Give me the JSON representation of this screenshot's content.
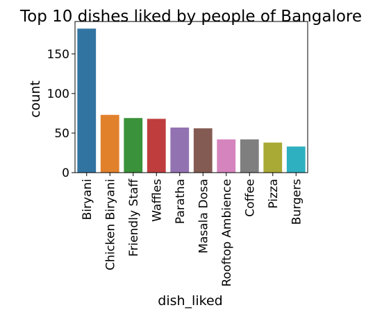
{
  "chart_data": {
    "type": "bar",
    "title": "Top 10 dishes liked by people of Bangalore",
    "xlabel": "dish_liked",
    "ylabel": "count",
    "categories": [
      "Biryani",
      "Chicken Biryani",
      "Friendly Staff",
      "Waffles",
      "Paratha",
      "Masala Dosa",
      "Rooftop Ambience",
      "Coffee",
      "Pizza",
      "Burgers"
    ],
    "values": [
      182,
      73,
      69,
      68,
      57,
      56,
      42,
      42,
      38,
      33
    ],
    "colors": [
      "#3274a1",
      "#e1812c",
      "#3a923a",
      "#c03d3e",
      "#9372b2",
      "#845b53",
      "#d684bd",
      "#7f7f7f",
      "#a9aa35",
      "#2eb0c0"
    ],
    "yticks": [
      0,
      50,
      100,
      150
    ],
    "ylim": [
      0,
      191
    ],
    "grid": false,
    "legend": "none"
  }
}
